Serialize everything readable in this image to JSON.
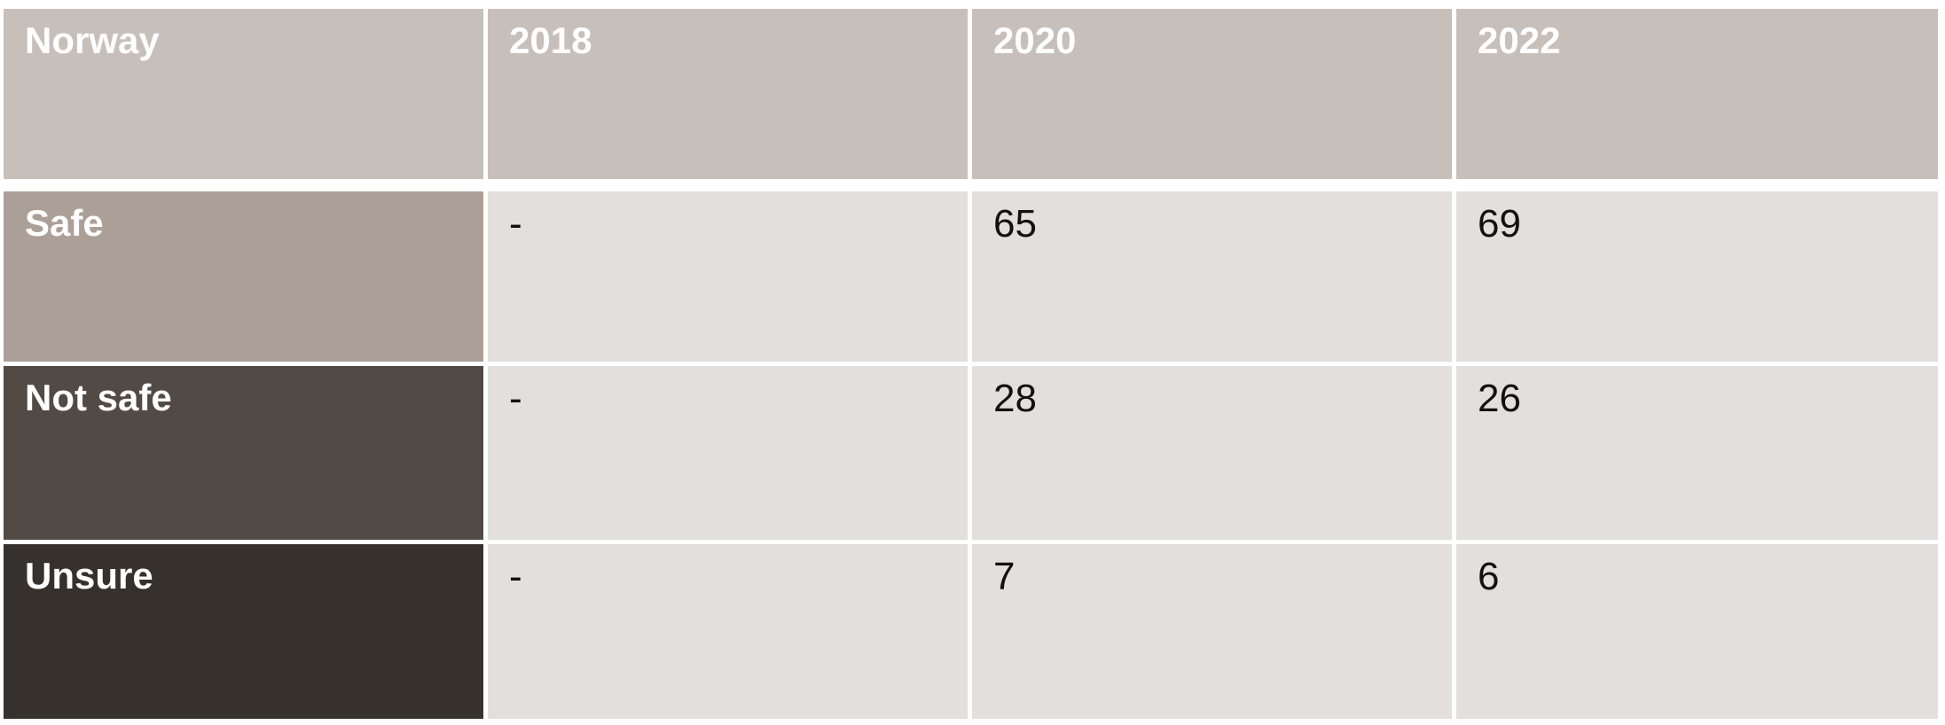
{
  "table": {
    "corner": "Norway",
    "columns": [
      "2018",
      "2020",
      "2022"
    ],
    "rows": [
      {
        "label": "Safe",
        "values": [
          "-",
          "65",
          "69"
        ],
        "color": "#ab9f97"
      },
      {
        "label": "Not safe",
        "values": [
          "-",
          "28",
          "26"
        ],
        "color": "#524a44"
      },
      {
        "label": "Unsure",
        "values": [
          "-",
          "7",
          "6"
        ],
        "color": "#36312c"
      }
    ],
    "header_color": "#c7bfba",
    "cell_color": "#e2dfdc"
  }
}
